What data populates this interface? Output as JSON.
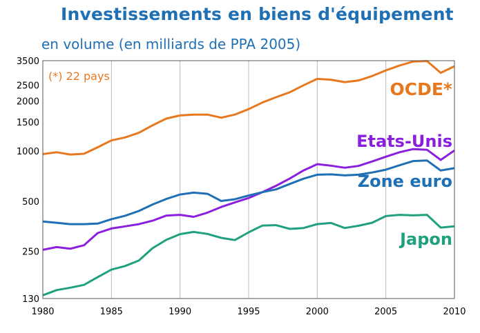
{
  "chart_data": {
    "type": "line",
    "title": "Investissements en biens d'équipement",
    "subtitle": "en volume (en milliards de PPA 2005)",
    "note": "(*) 22 pays",
    "xlabel": "",
    "ylabel": "",
    "y_scale": "log",
    "xlim": [
      1980,
      2010
    ],
    "ylim": [
      130,
      3500
    ],
    "x_ticks": [
      1980,
      1985,
      1990,
      1995,
      2000,
      2005,
      2010
    ],
    "y_ticks": [
      130,
      250,
      500,
      1000,
      1500,
      2000,
      2500,
      3500
    ],
    "grid": {
      "vertical": true,
      "horizontal": false
    },
    "x": [
      1980,
      1981,
      1982,
      1983,
      1984,
      1985,
      1986,
      1987,
      1988,
      1989,
      1990,
      1991,
      1992,
      1993,
      1994,
      1995,
      1996,
      1997,
      1998,
      1999,
      2000,
      2001,
      2002,
      2003,
      2004,
      2005,
      2006,
      2007,
      2008,
      2009,
      2010
    ],
    "series": [
      {
        "name": "OCDE*",
        "color": "#e8781e",
        "values": [
          960,
          985,
          955,
          965,
          1055,
          1160,
          1210,
          1290,
          1430,
          1570,
          1640,
          1660,
          1660,
          1590,
          1660,
          1790,
          1960,
          2110,
          2260,
          2490,
          2720,
          2690,
          2600,
          2660,
          2830,
          3060,
          3270,
          3460,
          3480,
          2960,
          3240
        ]
      },
      {
        "name": "Etats-Unis",
        "color": "#8b1fe0",
        "values": [
          255,
          265,
          259,
          272,
          322,
          343,
          353,
          364,
          382,
          410,
          414,
          403,
          427,
          462,
          492,
          523,
          567,
          619,
          685,
          766,
          835,
          818,
          795,
          815,
          867,
          926,
          985,
          1030,
          1020,
          885,
          1010
        ]
      },
      {
        "name": "Zone euro",
        "color": "#1f6fb5",
        "values": [
          378,
          371,
          364,
          364,
          367,
          390,
          409,
          437,
          478,
          516,
          549,
          563,
          554,
          502,
          514,
          541,
          567,
          589,
          635,
          683,
          722,
          725,
          715,
          722,
          744,
          774,
          823,
          872,
          879,
          765,
          790
        ]
      },
      {
        "name": "Japon",
        "color": "#1fa07e",
        "values": [
          136,
          146,
          151,
          157,
          175,
          194,
          204,
          220,
          261,
          293,
          317,
          327,
          318,
          301,
          292,
          325,
          357,
          359,
          341,
          345,
          364,
          370,
          345,
          356,
          371,
          407,
          414,
          411,
          414,
          347,
          353
        ]
      }
    ]
  }
}
